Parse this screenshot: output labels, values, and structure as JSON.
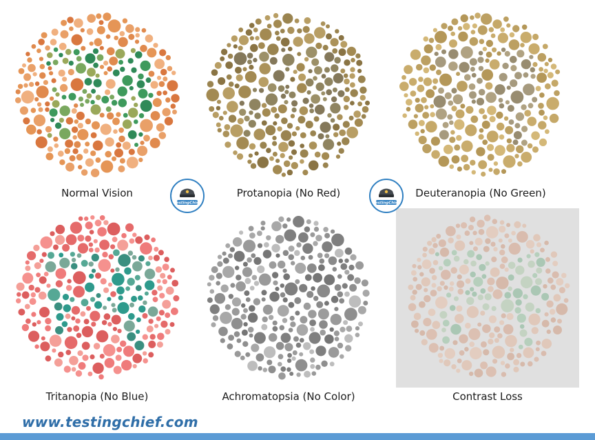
{
  "plates": [
    {
      "label": "Normal Vision",
      "bg": [
        "#e08a4e",
        "#e9a068",
        "#d9773f",
        "#f0b07f",
        "#e59556"
      ],
      "fg": [
        "#3e9a5c",
        "#7aa85f",
        "#2f8a58",
        "#9aa85a"
      ]
    },
    {
      "label": "Protanopia (No Red)",
      "bg": [
        "#9a8450",
        "#ab925a",
        "#8a7444",
        "#b89e64",
        "#a38a52"
      ],
      "fg": [
        "#8f8460",
        "#9c9068",
        "#84785a"
      ]
    },
    {
      "label": "Deuteranopia (No Green)",
      "bg": [
        "#c9ac6c",
        "#bca062",
        "#d4b878",
        "#b49758",
        "#c5a868"
      ],
      "fg": [
        "#a69a7e",
        "#988c70",
        "#b0a282"
      ]
    },
    {
      "label": "Tritanopia (No Blue)",
      "bg": [
        "#ef7b7b",
        "#f5918e",
        "#e56a6a",
        "#f49f98",
        "#dc5e5e"
      ],
      "fg": [
        "#2e9a8c",
        "#56a895",
        "#3a8f80",
        "#7aa898"
      ]
    },
    {
      "label": "Achromatopsia (No Color)",
      "bg": [
        "#a8a8a8",
        "#8f8f8f",
        "#bdbdbd",
        "#9a9a9a",
        "#7f7f7f"
      ],
      "fg": [
        "#8a8a8a",
        "#9c9c9c",
        "#767676"
      ]
    },
    {
      "label": "Contrast Loss",
      "bg": [
        "#dcc0b2",
        "#e0c8ba",
        "#d6b9aa",
        "#e3cdc0",
        "#d9bcae"
      ],
      "fg": [
        "#b6cfbc",
        "#c4d3c2",
        "#aac7b4"
      ]
    }
  ],
  "badges": [
    {
      "icon": "testingchief-badge-icon",
      "text": "TestingChief"
    },
    {
      "icon": "testingchief-badge-icon",
      "text": "TestingChief"
    }
  ],
  "footer": {
    "url": "www.testingchief.com"
  },
  "colors": {
    "accent": "#2f6ea8",
    "bar": "#5b9bd5"
  }
}
